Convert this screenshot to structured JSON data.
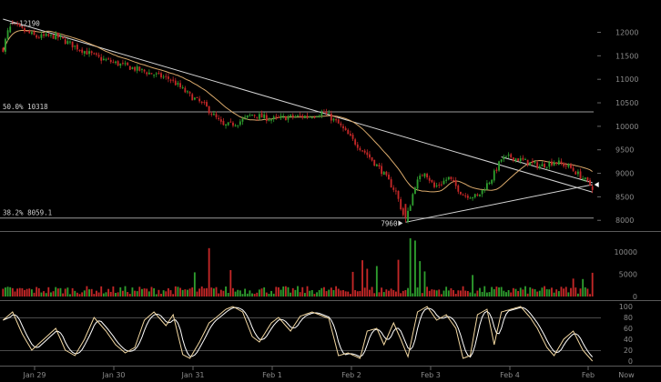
{
  "chart_data": {
    "type": "candlestick",
    "price_axis": {
      "ticks": [
        8000,
        8500,
        9000,
        9500,
        10000,
        10500,
        11000,
        11500,
        12000
      ],
      "range": [
        7850,
        12300
      ]
    },
    "volume_axis": {
      "ticks": [
        0,
        5000,
        10000
      ],
      "range": [
        0,
        13000
      ]
    },
    "stoch_axis": {
      "ticks": [
        0,
        20,
        40,
        60,
        80,
        100
      ],
      "range": [
        -5,
        105
      ]
    },
    "x_axis": {
      "ticks": [
        "Jan 29",
        "Jan 30",
        "Jan 31",
        "Feb 1",
        "Feb 2",
        "Feb 3",
        "Feb 4",
        "Feb",
        "Now"
      ]
    },
    "levels": [
      {
        "label": "50.0% 10318",
        "value": 10318
      },
      {
        "label": "38.2% 8059.1",
        "value": 8059.1
      }
    ],
    "callouts": [
      {
        "label": "12190",
        "value": 12190,
        "index": 3
      },
      {
        "label": "7960",
        "value": 7960,
        "index": 168
      }
    ],
    "trendlines": [
      {
        "from": [
          0,
          12280
        ],
        "to": [
          246,
          8600
        ]
      },
      {
        "from": [
          168,
          7960
        ],
        "to": [
          246,
          8760
        ]
      },
      {
        "from": [
          208,
          9350
        ],
        "to": [
          246,
          8800
        ]
      }
    ],
    "candle_count": 247,
    "keyframes": [
      [
        0,
        11650
      ],
      [
        3,
        12190
      ],
      [
        8,
        12050
      ],
      [
        14,
        11900
      ],
      [
        22,
        11920
      ],
      [
        30,
        11700
      ],
      [
        40,
        11450
      ],
      [
        50,
        11300
      ],
      [
        60,
        11150
      ],
      [
        70,
        11000
      ],
      [
        78,
        10650
      ],
      [
        84,
        10450
      ],
      [
        92,
        10000
      ],
      [
        98,
        10080
      ],
      [
        104,
        10250
      ],
      [
        112,
        10150
      ],
      [
        120,
        10200
      ],
      [
        128,
        10220
      ],
      [
        134,
        10300
      ],
      [
        140,
        10050
      ],
      [
        146,
        9700
      ],
      [
        152,
        9400
      ],
      [
        158,
        9050
      ],
      [
        164,
        8600
      ],
      [
        168,
        7960
      ],
      [
        172,
        8750
      ],
      [
        176,
        9050
      ],
      [
        180,
        8700
      ],
      [
        186,
        8900
      ],
      [
        192,
        8550
      ],
      [
        198,
        8500
      ],
      [
        204,
        8900
      ],
      [
        208,
        9300
      ],
      [
        212,
        9350
      ],
      [
        218,
        9250
      ],
      [
        224,
        9150
      ],
      [
        230,
        9250
      ],
      [
        236,
        9150
      ],
      [
        242,
        8900
      ],
      [
        246,
        8700
      ]
    ],
    "volume_spikes": [
      [
        86,
        10800
      ],
      [
        80,
        5400
      ],
      [
        95,
        5900
      ],
      [
        146,
        5500
      ],
      [
        150,
        8100
      ],
      [
        152,
        6200
      ],
      [
        156,
        6800
      ],
      [
        165,
        8200
      ],
      [
        170,
        13000
      ],
      [
        172,
        12500
      ],
      [
        174,
        7900
      ],
      [
        176,
        5600
      ],
      [
        196,
        4800
      ],
      [
        238,
        4000
      ],
      [
        242,
        3900
      ],
      [
        246,
        5300
      ]
    ],
    "volume_base": 1300,
    "stoch_k": [
      [
        0,
        75
      ],
      [
        4,
        90
      ],
      [
        8,
        50
      ],
      [
        12,
        20
      ],
      [
        17,
        40
      ],
      [
        22,
        60
      ],
      [
        26,
        20
      ],
      [
        30,
        10
      ],
      [
        34,
        40
      ],
      [
        38,
        80
      ],
      [
        43,
        55
      ],
      [
        47,
        30
      ],
      [
        51,
        15
      ],
      [
        55,
        25
      ],
      [
        59,
        75
      ],
      [
        63,
        90
      ],
      [
        68,
        65
      ],
      [
        71,
        85
      ],
      [
        75,
        12
      ],
      [
        78,
        5
      ],
      [
        82,
        35
      ],
      [
        86,
        70
      ],
      [
        89,
        80
      ],
      [
        93,
        95
      ],
      [
        96,
        100
      ],
      [
        100,
        90
      ],
      [
        104,
        45
      ],
      [
        107,
        35
      ],
      [
        112,
        70
      ],
      [
        115,
        80
      ],
      [
        120,
        55
      ],
      [
        124,
        82
      ],
      [
        129,
        90
      ],
      [
        132,
        85
      ],
      [
        136,
        78
      ],
      [
        140,
        10
      ],
      [
        144,
        15
      ],
      [
        149,
        5
      ],
      [
        152,
        55
      ],
      [
        156,
        60
      ],
      [
        159,
        30
      ],
      [
        163,
        70
      ],
      [
        166,
        40
      ],
      [
        169,
        8
      ],
      [
        173,
        90
      ],
      [
        177,
        100
      ],
      [
        181,
        75
      ],
      [
        185,
        85
      ],
      [
        189,
        60
      ],
      [
        192,
        5
      ],
      [
        195,
        10
      ],
      [
        198,
        85
      ],
      [
        202,
        95
      ],
      [
        205,
        30
      ],
      [
        208,
        90
      ],
      [
        212,
        95
      ],
      [
        216,
        100
      ],
      [
        220,
        80
      ],
      [
        223,
        60
      ],
      [
        227,
        25
      ],
      [
        230,
        10
      ],
      [
        234,
        40
      ],
      [
        238,
        55
      ],
      [
        242,
        20
      ],
      [
        246,
        0
      ]
    ],
    "colors": {
      "up": "#2e9e2e",
      "down": "#c42727",
      "ma": "#d9a96b",
      "stoch_k": "#f2d7a0",
      "stoch_d": "#ffffff",
      "trendline": "#d4d4d4",
      "level_line": "#9a9a9a",
      "grid": "#4a4a4a",
      "axis_text": "#8a8a8a",
      "background": "#000000"
    }
  }
}
